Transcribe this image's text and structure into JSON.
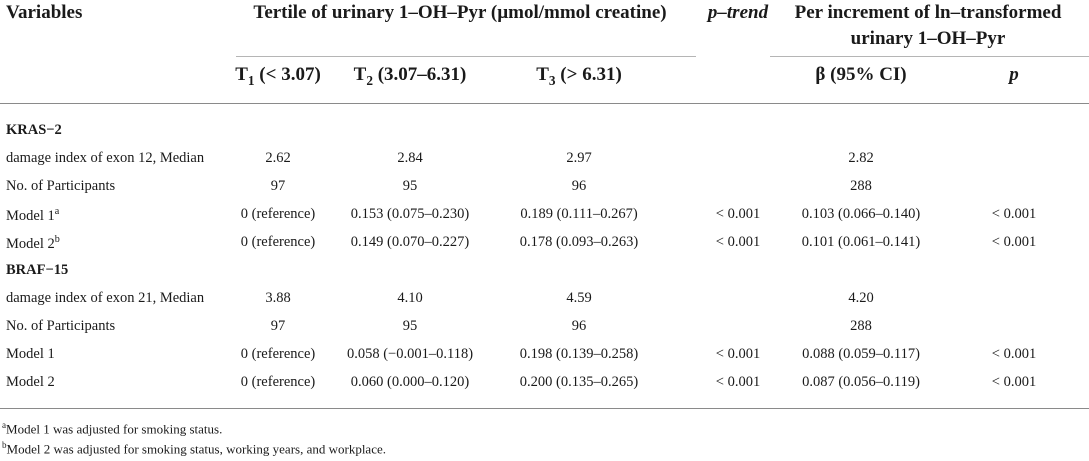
{
  "header": {
    "variables": "Variables",
    "tertile_title": "Tertile of urinary 1–OH–Pyr (µmol/mmol creatine)",
    "p_trend": "p–trend",
    "per_increment_line1": "Per increment of ln–transformed",
    "per_increment_line2": "urinary 1–OH–Pyr",
    "t1_letter": "T",
    "t1_sub": "1",
    "t1_range": "(< 3.07)",
    "t2_letter": "T",
    "t2_sub": "2",
    "t2_range": "(3.07–6.31)",
    "t3_letter": "T",
    "t3_sub": "3",
    "t3_range": "(> 6.31)",
    "beta": "β (95% CI)",
    "p": "p"
  },
  "sections": [
    {
      "title": "KRAS−2",
      "rows": [
        {
          "label": "damage index of exon 12, Median",
          "sup": "",
          "t1": "2.62",
          "t2": "2.84",
          "t3": "2.97",
          "ptrend": "",
          "beta": "2.82",
          "p": ""
        },
        {
          "label": "No. of Participants",
          "sup": "",
          "t1": "97",
          "t2": "95",
          "t3": "96",
          "ptrend": "",
          "beta": "288",
          "p": ""
        },
        {
          "label": "Model 1",
          "sup": "a",
          "t1": "0 (reference)",
          "t2": "0.153 (0.075–0.230)",
          "t3": "0.189 (0.111–0.267)",
          "ptrend": "< 0.001",
          "beta": "0.103 (0.066–0.140)",
          "p": "< 0.001"
        },
        {
          "label": "Model 2",
          "sup": "b",
          "t1": "0 (reference)",
          "t2": "0.149 (0.070–0.227)",
          "t3": "0.178 (0.093–0.263)",
          "ptrend": "< 0.001",
          "beta": "0.101 (0.061–0.141)",
          "p": "< 0.001"
        }
      ]
    },
    {
      "title": "BRAF−15",
      "rows": [
        {
          "label": "damage index of exon 21, Median",
          "sup": "",
          "t1": "3.88",
          "t2": "4.10",
          "t3": "4.59",
          "ptrend": "",
          "beta": "4.20",
          "p": ""
        },
        {
          "label": "No. of Participants",
          "sup": "",
          "t1": "97",
          "t2": "95",
          "t3": "96",
          "ptrend": "",
          "beta": "288",
          "p": ""
        },
        {
          "label": "Model 1",
          "sup": "",
          "t1": "0 (reference)",
          "t2": "0.058 (−0.001–0.118)",
          "t3": "0.198 (0.139–0.258)",
          "ptrend": "< 0.001",
          "beta": "0.088 (0.059–0.117)",
          "p": "< 0.001"
        },
        {
          "label": "Model 2",
          "sup": "",
          "t1": "0 (reference)",
          "t2": "0.060 (0.000–0.120)",
          "t3": "0.200 (0.135–0.265)",
          "ptrend": "< 0.001",
          "beta": "0.087 (0.056–0.119)",
          "p": "< 0.001"
        }
      ]
    }
  ],
  "footnotes": [
    {
      "mark": "a",
      "text": "Model 1 was adjusted for smoking status."
    },
    {
      "mark": "b",
      "text": "Model 2 was adjusted for smoking status, working years, and workplace."
    }
  ]
}
